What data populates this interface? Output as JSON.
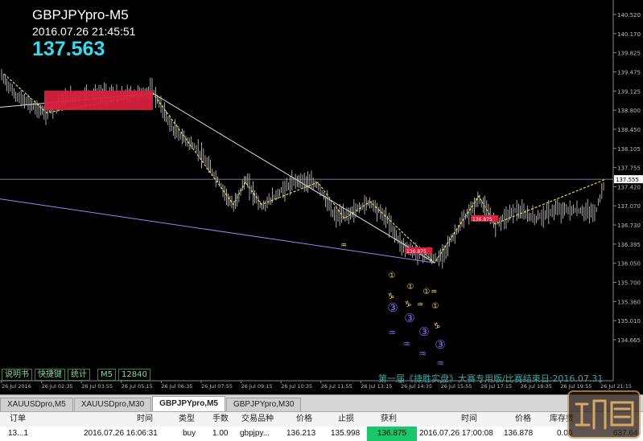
{
  "chart": {
    "symbol_title": "GBPJPYpro-M5",
    "datetime": "2016.07.26 21:45:51",
    "bid_price": "137.563",
    "current_price_tag": "137.555",
    "y_axis_labels": [
      "140.520",
      "140.170",
      "139.825",
      "139.475",
      "139.125",
      "138.800",
      "138.450",
      "138.105",
      "137.755",
      "137.420",
      "137.070",
      "136.730",
      "136.395",
      "136.050",
      "135.700",
      "135.360",
      "135.010",
      "134.665"
    ],
    "x_axis_labels": [
      "26 Jul 2016",
      "26 Jul 02:35",
      "26 Jul 03:55",
      "26 Jul 05:15",
      "26 Jul 06:35",
      "26 Jul 07:55",
      "26 Jul 09:15",
      "26 Jul 10:35",
      "26 Jul 11:55",
      "26 Jul 13:15",
      "26 Jul 14:35",
      "26 Jul 15:55",
      "26 Jul 17:15",
      "26 Jul 18:35",
      "26 Jul 19:55",
      "26 Jul 21:15"
    ],
    "toolbar_buttons": [
      "说明书",
      "快捷键",
      "统计",
      "M5",
      "12840"
    ],
    "banner": "第一届《捷胜实盘》大赛专用版/比赛结束日:2016.07.31",
    "trade_marker_label": "136.875",
    "colors": {
      "background": "#000000",
      "candles": "#cfcfcf",
      "zigzag": "#e6d84a",
      "trend": "#dddddd",
      "channel": "#8c8cf0",
      "accent": "#d8203c",
      "price_text": "#33ddee"
    }
  },
  "tabs": [
    "XAUUSDpro,M5",
    "XAUUSDpro,M30",
    "GBPJPYpro,M5",
    "GBPJPYpro,M30"
  ],
  "active_tab": 2,
  "orders": {
    "headers": [
      "订单",
      "时间",
      "类型",
      "手数",
      "交易品种",
      "价格",
      "止损",
      "获利",
      "时间",
      "价格",
      "库存费"
    ],
    "row": {
      "order": "13...1",
      "time": "2016.07.26 16:06:31",
      "type": "buy",
      "lots": "1.00",
      "symbol": "gbpjpy...",
      "price": "136.213",
      "sl": "135.998",
      "tp": "136.875",
      "time2": "2016.07.26 17:00:08",
      "price2": "136.878",
      "swap": "0.00",
      "profit": "637.64"
    }
  },
  "logo": {
    "icon": "logo-icon"
  }
}
